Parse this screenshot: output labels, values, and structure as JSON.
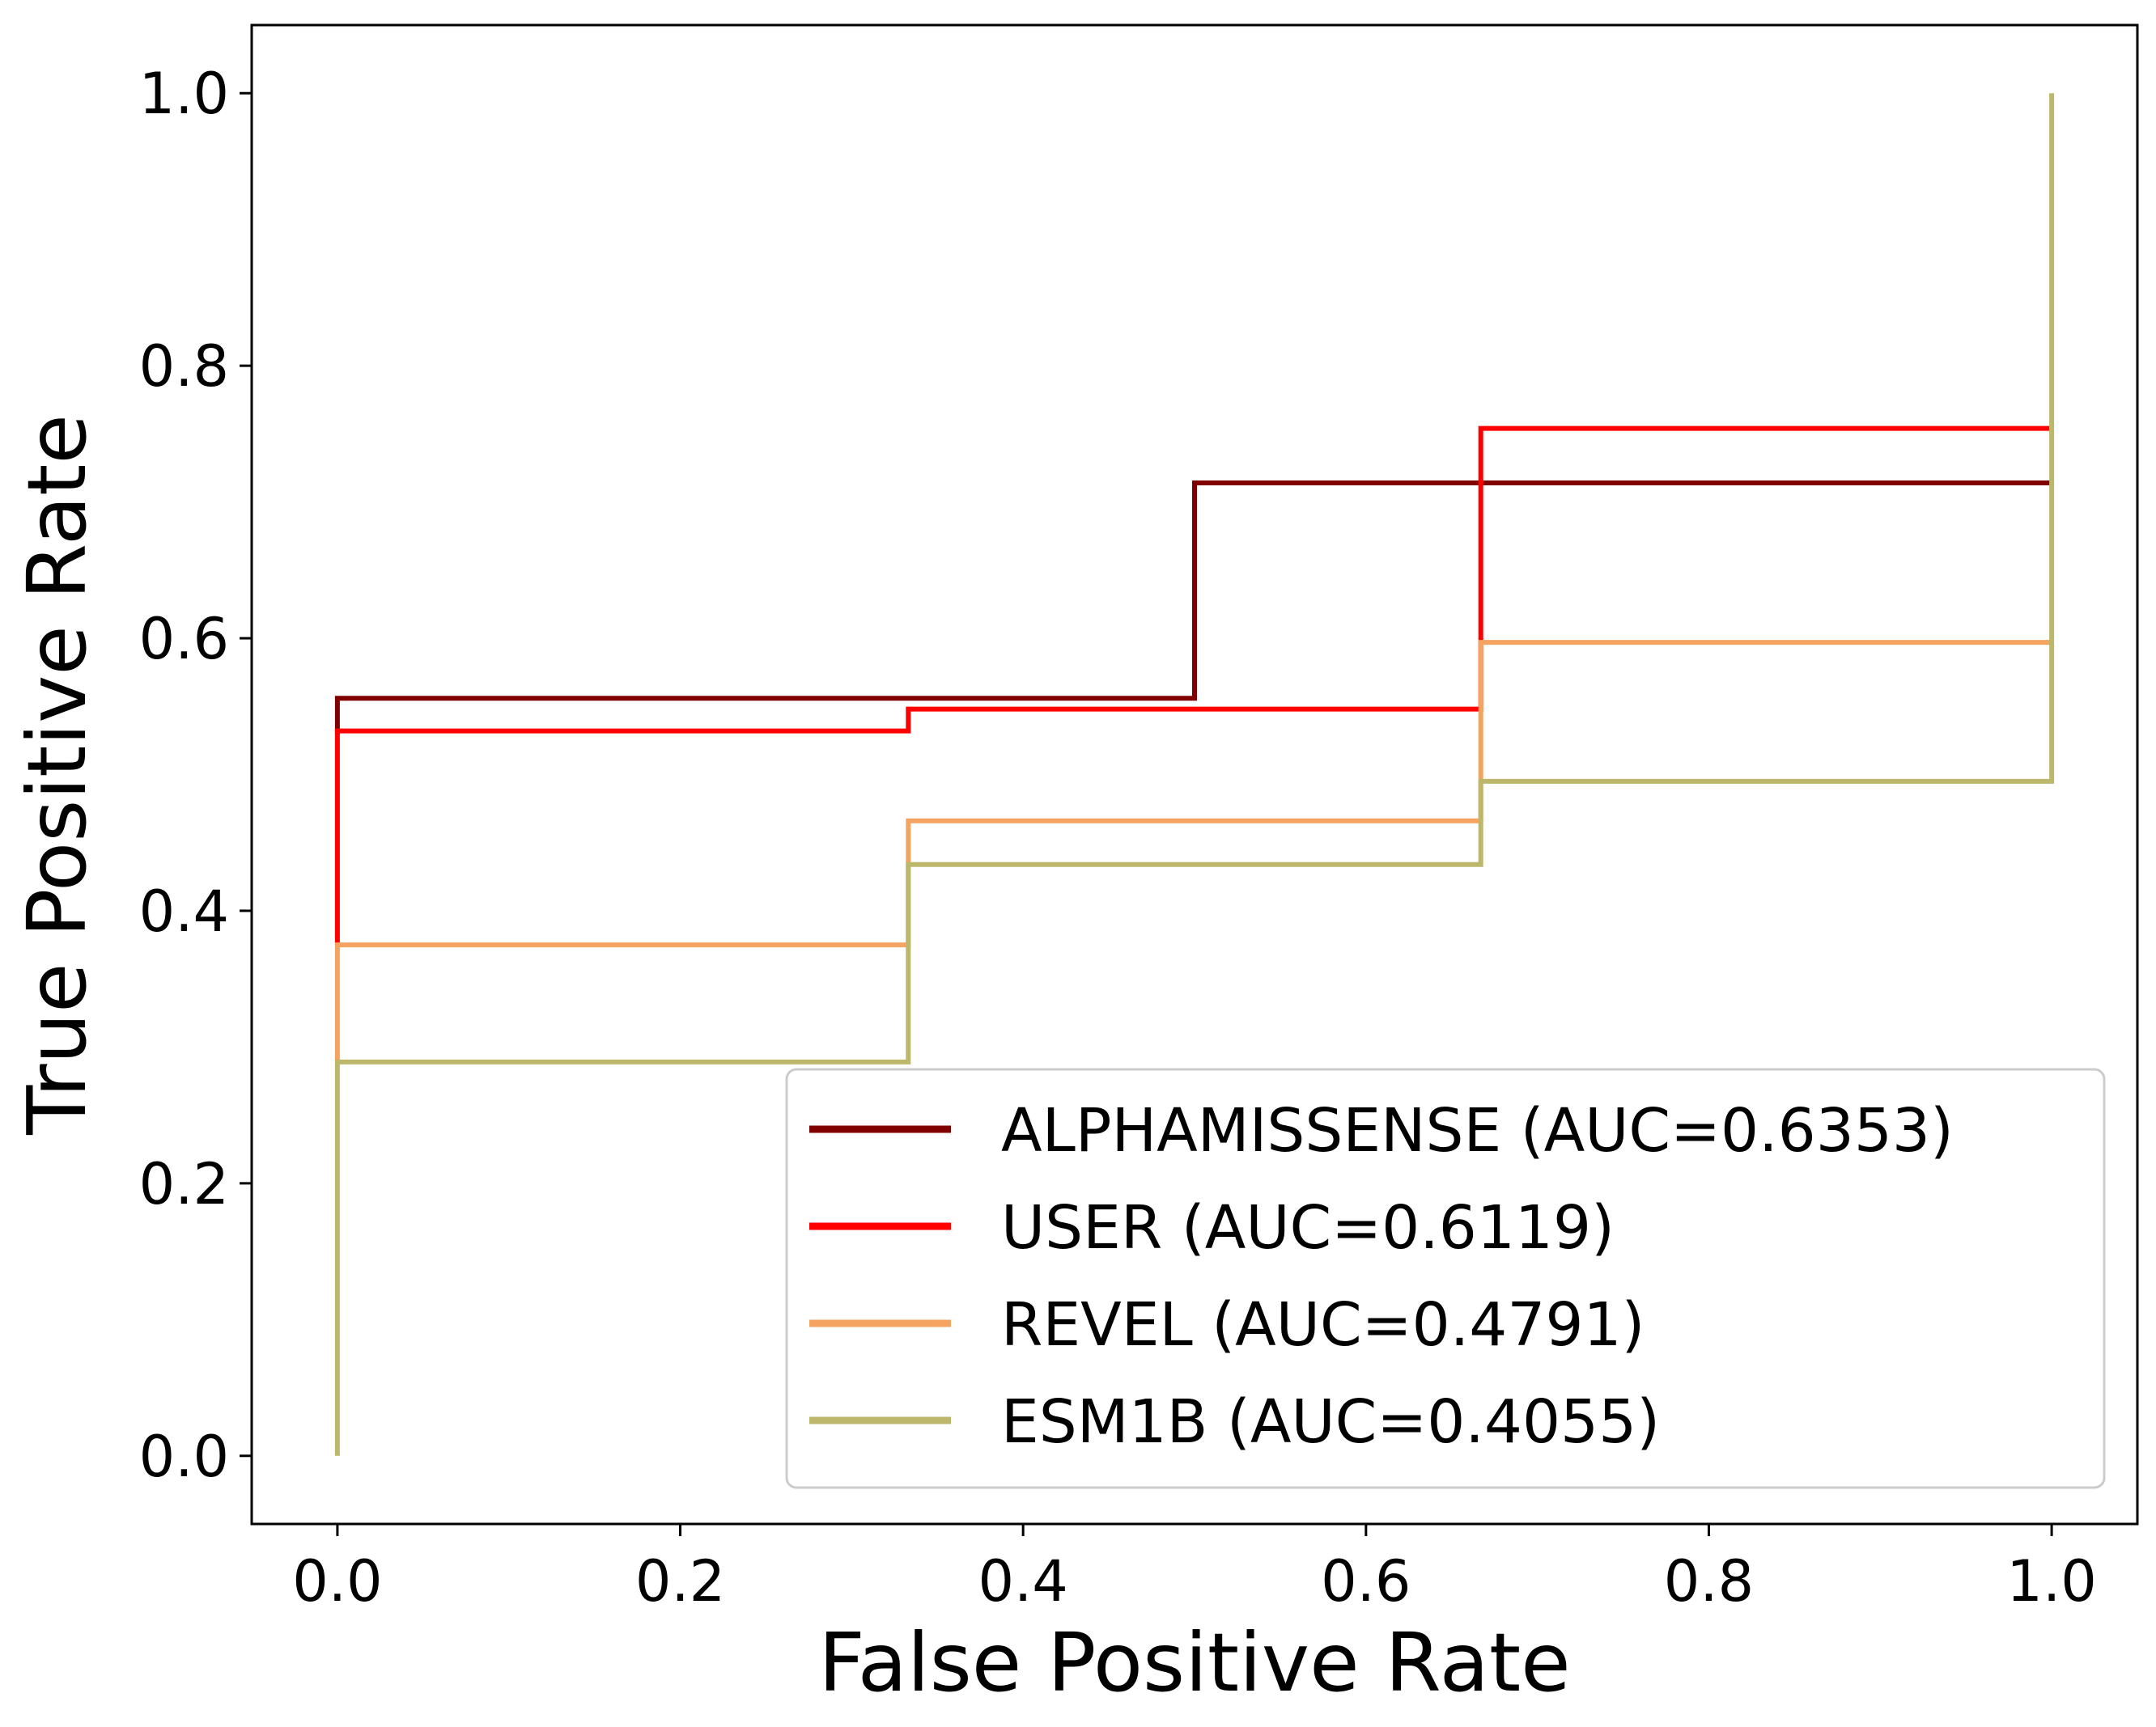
{
  "chart_data": {
    "type": "line",
    "step": true,
    "title": "",
    "xlabel": "False Positive Rate",
    "ylabel": "True Positive Rate",
    "xlim": [
      -0.05,
      1.05
    ],
    "ylim": [
      -0.05,
      1.05
    ],
    "x_ticks": [
      "0.0",
      "0.2",
      "0.4",
      "0.6",
      "0.8",
      "1.0"
    ],
    "y_ticks": [
      "0.0",
      "0.2",
      "0.4",
      "0.6",
      "0.8",
      "1.0"
    ],
    "grid": false,
    "legend_position": "lower right",
    "series": [
      {
        "name": "ALPHAMISSENSE (AUC=0.6353)",
        "color": "#800000",
        "x": [
          0.0,
          0.0,
          0.5,
          0.5,
          1.0
        ],
        "y": [
          0.53,
          0.556,
          0.556,
          0.714,
          0.714
        ]
      },
      {
        "name": "USER (AUC=0.6119)",
        "color": "#ff0000",
        "x": [
          0.0,
          0.0,
          0.333,
          0.333,
          0.667,
          0.667,
          1.0
        ],
        "y": [
          0.375,
          0.532,
          0.532,
          0.548,
          0.548,
          0.754,
          0.754
        ]
      },
      {
        "name": "REVEL (AUC=0.4791)",
        "color": "#f4a460",
        "x": [
          0.0,
          0.0,
          0.333,
          0.333,
          0.667,
          0.667,
          1.0
        ],
        "y": [
          0.29,
          0.375,
          0.375,
          0.466,
          0.466,
          0.597,
          0.597
        ]
      },
      {
        "name": "ESM1B (AUC=0.4055)",
        "color": "#bdb76b",
        "x": [
          0.0,
          0.0,
          0.333,
          0.333,
          0.667,
          0.667,
          1.0,
          1.0
        ],
        "y": [
          0.0,
          0.289,
          0.289,
          0.434,
          0.434,
          0.495,
          0.495,
          1.0
        ]
      }
    ]
  }
}
